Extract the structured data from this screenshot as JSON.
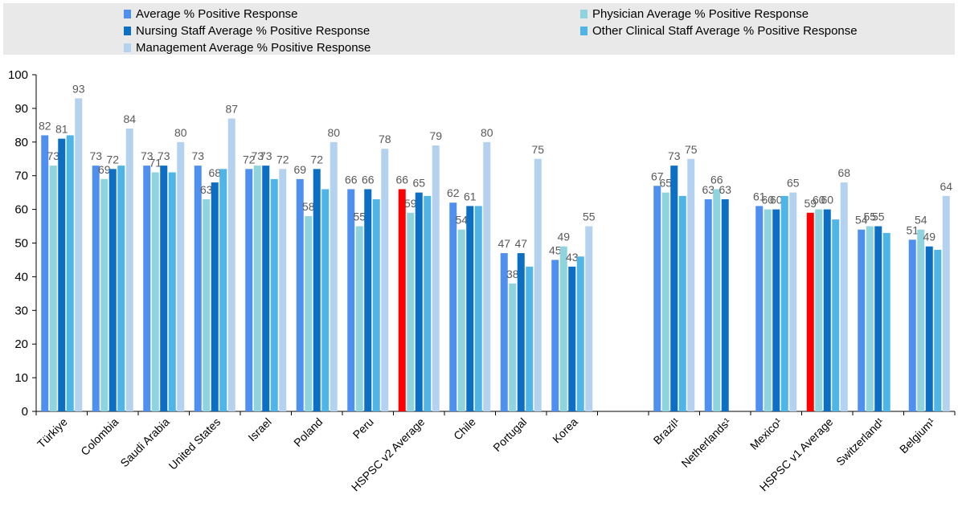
{
  "chart_data": {
    "type": "bar",
    "ylim": [
      0,
      100
    ],
    "yticks": [
      0,
      10,
      20,
      30,
      40,
      50,
      60,
      70,
      80,
      90,
      100
    ],
    "grid": false,
    "legend_position": "top",
    "series": [
      {
        "name": "Average % Positive Response",
        "color": "#4f8ff0"
      },
      {
        "name": "Physician Average % Positive Response",
        "color": "#8fd3df"
      },
      {
        "name": "Nursing Staff Average % Positive Response",
        "color": "#0d6fc4"
      },
      {
        "name": "Other Clinical Staff Average % Positive Response",
        "color": "#4fb4e6"
      },
      {
        "name": "Management Average % Positive Response",
        "color": "#b4d2ef"
      }
    ],
    "highlight_color": "#ff0000",
    "categories": [
      {
        "label": "Türkiye",
        "values": [
          82,
          73,
          81,
          82,
          93
        ],
        "labels": [
          "82",
          "73",
          "81",
          "",
          "93"
        ]
      },
      {
        "label": "Colombia",
        "values": [
          73,
          69,
          72,
          73,
          84
        ],
        "labels": [
          "73",
          "69",
          "72",
          "",
          "84"
        ]
      },
      {
        "label": "Saudi Arabia",
        "values": [
          73,
          71,
          73,
          71,
          80
        ],
        "labels": [
          "73",
          "71",
          "73",
          "",
          "80"
        ]
      },
      {
        "label": "United States",
        "values": [
          73,
          63,
          68,
          72,
          87
        ],
        "labels": [
          "73",
          "63",
          "68",
          "",
          "87"
        ]
      },
      {
        "label": "Israel",
        "values": [
          72,
          73,
          73,
          69,
          72
        ],
        "labels": [
          "72",
          "73",
          "73",
          "",
          "72"
        ]
      },
      {
        "label": "Poland",
        "values": [
          69,
          58,
          72,
          66,
          80
        ],
        "labels": [
          "69",
          "58",
          "72",
          "",
          "80"
        ]
      },
      {
        "label": "Peru",
        "values": [
          66,
          55,
          66,
          63,
          78
        ],
        "labels": [
          "66",
          "55",
          "66",
          "",
          "78"
        ]
      },
      {
        "label": "HSPSC v2 Average",
        "values": [
          66,
          59,
          65,
          64,
          79
        ],
        "labels": [
          "66",
          "59",
          "65",
          "",
          "79"
        ],
        "highlight": true
      },
      {
        "label": "Chile",
        "values": [
          62,
          54,
          61,
          61,
          80
        ],
        "labels": [
          "62",
          "54",
          "61",
          "",
          "80"
        ]
      },
      {
        "label": "Portugal",
        "values": [
          47,
          38,
          47,
          43,
          75
        ],
        "labels": [
          "47",
          "38",
          "47",
          "",
          "75"
        ]
      },
      {
        "label": "Korea",
        "values": [
          45,
          49,
          43,
          46,
          55
        ],
        "labels": [
          "45",
          "49",
          "43",
          "",
          "55"
        ]
      },
      {
        "label": "",
        "values": [],
        "labels": [],
        "gap": true
      },
      {
        "label": "Brazil¹",
        "values": [
          67,
          65,
          73,
          64,
          75
        ],
        "labels": [
          "67",
          "65",
          "73",
          "",
          "75"
        ]
      },
      {
        "label": "Netherlands¹",
        "values": [
          63,
          66,
          63,
          null,
          null
        ],
        "labels": [
          "63",
          "66",
          "63",
          "",
          ""
        ]
      },
      {
        "label": "Mexico¹",
        "values": [
          61,
          60,
          60,
          64,
          65
        ],
        "labels": [
          "61",
          "60",
          "60",
          "",
          "65"
        ]
      },
      {
        "label": "HSPSC v1 Average",
        "values": [
          59,
          60,
          60,
          57,
          68
        ],
        "labels": [
          "59",
          "60",
          "60",
          "",
          "68"
        ],
        "highlight": true
      },
      {
        "label": "Switzerland¹",
        "values": [
          54,
          55,
          55,
          53,
          null
        ],
        "labels": [
          "54",
          "55",
          "55",
          "",
          ""
        ]
      },
      {
        "label": "Belgium¹",
        "values": [
          51,
          54,
          49,
          48,
          64
        ],
        "labels": [
          "51",
          "54",
          "49",
          "",
          "64"
        ]
      }
    ]
  }
}
